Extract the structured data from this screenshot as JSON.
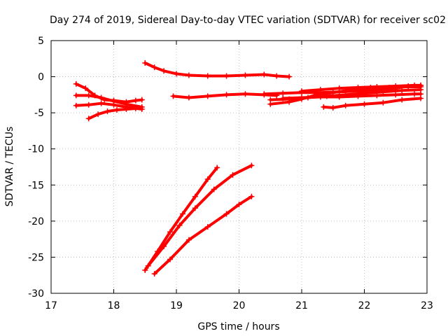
{
  "chart_data": {
    "type": "line",
    "title": "Day 274 of 2019, Sidereal Day-to-day VTEC variation (SDTVAR) for receiver sc02",
    "xlabel": "GPS time / hours",
    "ylabel": "SDTVAR / TECUs",
    "xlim": [
      17,
      23
    ],
    "ylim": [
      -30,
      5
    ],
    "xticks": [
      17,
      18,
      19,
      20,
      21,
      22,
      23
    ],
    "yticks": [
      -30,
      -25,
      -20,
      -15,
      -10,
      -5,
      0,
      5
    ],
    "grid": true,
    "legend": "none",
    "color": "#ff0000",
    "series": [
      {
        "x": [
          17.4,
          17.55,
          17.7,
          17.85,
          18.0,
          18.2,
          18.35,
          18.45
        ],
        "y": [
          -1.0,
          -1.6,
          -2.6,
          -3.2,
          -3.3,
          -3.5,
          -3.3,
          -3.2
        ]
      },
      {
        "x": [
          17.4,
          17.6,
          17.8,
          18.0,
          18.2,
          18.45
        ],
        "y": [
          -2.6,
          -2.6,
          -2.9,
          -3.4,
          -3.8,
          -4.2
        ]
      },
      {
        "x": [
          17.4,
          17.6,
          17.8,
          18.0,
          18.2,
          18.45
        ],
        "y": [
          -4.0,
          -3.9,
          -3.7,
          -3.9,
          -4.2,
          -4.5
        ]
      },
      {
        "x": [
          17.6,
          17.75,
          17.9,
          18.05,
          18.2,
          18.35
        ],
        "y": [
          -5.8,
          -5.2,
          -4.8,
          -4.6,
          -4.5,
          -4.4
        ]
      },
      {
        "x": [
          18.5,
          18.65,
          18.8,
          19.0,
          19.2,
          19.5,
          19.8,
          20.1,
          20.4,
          20.6,
          20.8
        ],
        "y": [
          1.9,
          1.3,
          0.8,
          0.4,
          0.2,
          0.1,
          0.1,
          0.2,
          0.3,
          0.1,
          0.0
        ]
      },
      {
        "x": [
          18.95,
          19.2,
          19.5,
          19.8,
          20.1,
          20.4,
          20.6
        ],
        "y": [
          -2.7,
          -2.9,
          -2.7,
          -2.5,
          -2.4,
          -2.5,
          -2.6
        ]
      },
      {
        "x": [
          20.4,
          20.7,
          21.0,
          21.3,
          21.6,
          21.9,
          22.2,
          22.5,
          22.7,
          22.9
        ],
        "y": [
          -2.4,
          -2.3,
          -2.2,
          -2.2,
          -2.1,
          -2.0,
          -1.8,
          -1.6,
          -1.3,
          -1.2
        ]
      },
      {
        "x": [
          20.5,
          20.8,
          21.1,
          21.4,
          21.7,
          22.0,
          22.3,
          22.6,
          22.9
        ],
        "y": [
          -3.2,
          -3.1,
          -2.9,
          -2.7,
          -2.5,
          -2.3,
          -2.1,
          -1.9,
          -1.8
        ]
      },
      {
        "x": [
          20.5,
          20.8,
          21.0,
          21.2,
          21.5,
          21.8,
          22.1,
          22.4,
          22.7,
          22.9
        ],
        "y": [
          -3.8,
          -3.5,
          -3.1,
          -2.6,
          -2.2,
          -1.8,
          -1.5,
          -1.5,
          -1.4,
          -1.4
        ]
      },
      {
        "x": [
          20.7,
          21.0,
          21.3,
          21.6,
          21.9,
          22.2,
          22.5,
          22.8,
          22.9
        ],
        "y": [
          -3.0,
          -2.9,
          -2.8,
          -2.8,
          -2.7,
          -2.6,
          -2.5,
          -2.4,
          -2.4
        ]
      },
      {
        "x": [
          21.35,
          21.5,
          21.7,
          22.0,
          22.3,
          22.6,
          22.9
        ],
        "y": [
          -4.2,
          -4.3,
          -4.0,
          -3.8,
          -3.6,
          -3.2,
          -3.0
        ]
      },
      {
        "x": [
          21.0,
          21.3,
          21.6,
          21.9,
          22.2,
          22.5,
          22.8,
          22.9
        ],
        "y": [
          -2.0,
          -1.8,
          -1.6,
          -1.5,
          -1.4,
          -1.3,
          -1.2,
          -1.2
        ]
      },
      {
        "x": [
          18.5,
          18.7,
          18.9,
          19.1,
          19.3,
          19.5,
          19.65
        ],
        "y": [
          -26.8,
          -24.2,
          -21.5,
          -19.0,
          -16.6,
          -14.2,
          -12.6
        ]
      },
      {
        "x": [
          18.55,
          18.8,
          19.05,
          19.3,
          19.6,
          19.9,
          20.2
        ],
        "y": [
          -26.2,
          -23.5,
          -20.6,
          -18.2,
          -15.6,
          -13.6,
          -12.3
        ]
      },
      {
        "x": [
          18.65,
          18.9,
          19.2,
          19.5,
          19.8,
          20.0,
          20.2
        ],
        "y": [
          -27.3,
          -25.3,
          -22.6,
          -20.8,
          -19.0,
          -17.7,
          -16.6
        ]
      }
    ]
  }
}
